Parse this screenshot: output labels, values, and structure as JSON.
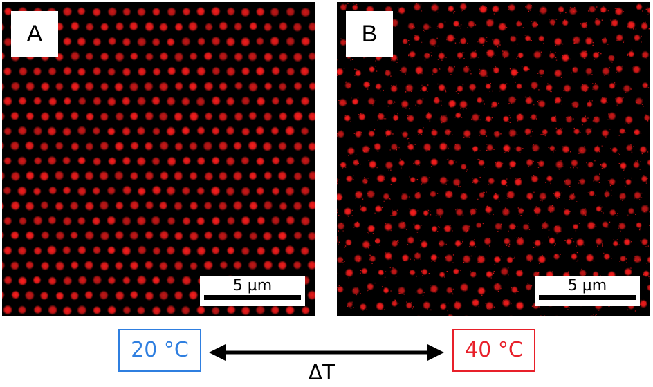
{
  "panels": [
    {
      "label": "A",
      "scale_label": "5 µm",
      "texture": "ordered-hexagonal-red-spots"
    },
    {
      "label": "B",
      "scale_label": "5 µm",
      "texture": "disordered-speckled-red-spots"
    }
  ],
  "temperatures": {
    "left": {
      "text": "20 °C",
      "color": "#2f7fe0"
    },
    "right": {
      "text": "40 °C",
      "color": "#e8202a"
    }
  },
  "transition_label": "ΔT",
  "colors": {
    "spot": "#ff1e1e",
    "background": "#000000",
    "arrow": "#000000"
  }
}
